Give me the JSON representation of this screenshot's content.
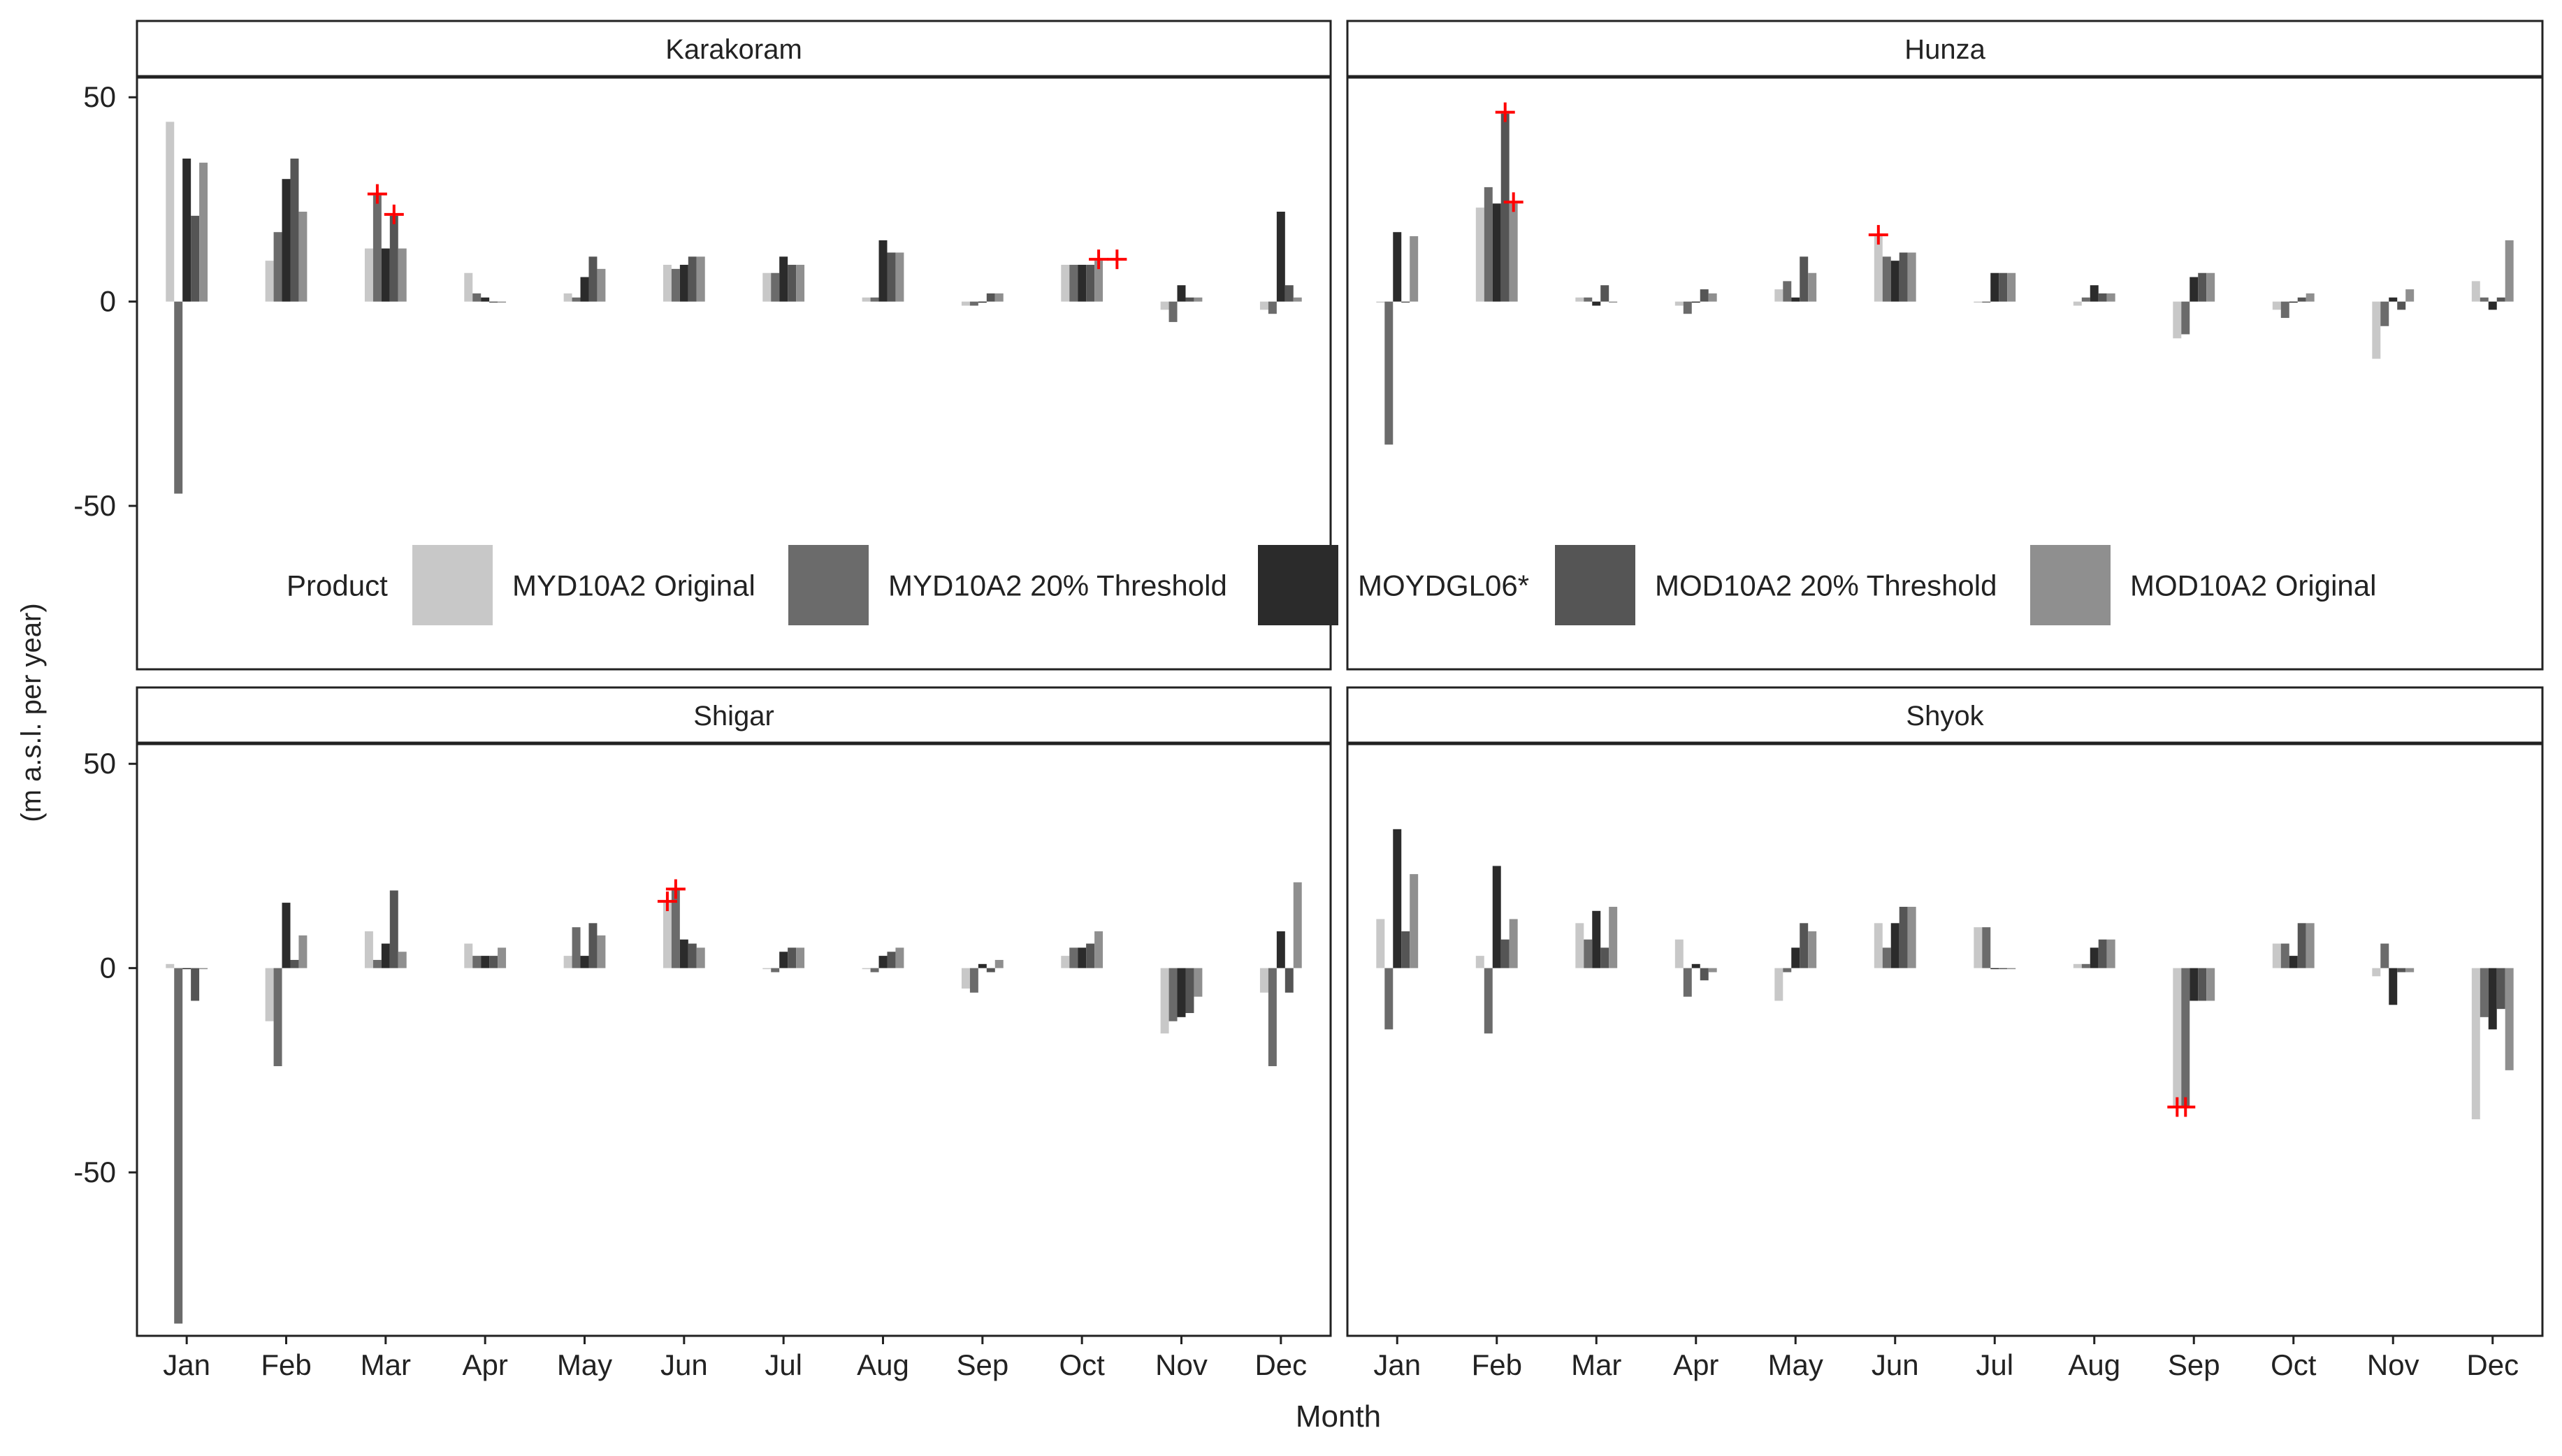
{
  "chart_data": {
    "type": "bar",
    "xlabel": "Month",
    "ylabel": "(m a.s.l. per year)",
    "ylim": [
      -90,
      55
    ],
    "yticks": [
      50,
      0,
      -50
    ],
    "categories": [
      "Jan",
      "Feb",
      "Mar",
      "Apr",
      "May",
      "Jun",
      "Jul",
      "Aug",
      "Sep",
      "Oct",
      "Nov",
      "Dec"
    ],
    "legend": {
      "title": "Product",
      "placement": "inside top-right panels, bottom",
      "entries": [
        "MYD10A2 Original",
        "MYD10A2 20% Threshold",
        "MOYDGL06*",
        "MOD10A2 20% Threshold",
        "MOD10A2 Original"
      ]
    },
    "series_colors": [
      "#c8c8c8",
      "#6b6b6b",
      "#2b2b2b",
      "#555555",
      "#8f8f8f"
    ],
    "marker_color": "#ff0000",
    "panels": [
      {
        "title": "Karakoram",
        "series": [
          {
            "name": "MYD10A2 Original",
            "values": [
              44,
              10,
              13,
              7,
              2,
              9,
              7,
              1,
              -1,
              9,
              -2,
              -2
            ]
          },
          {
            "name": "MYD10A2 20% Threshold",
            "values": [
              -47,
              17,
              26,
              2,
              1,
              8,
              7,
              1,
              -1,
              9,
              -5,
              -3
            ]
          },
          {
            "name": "MOYDGL06*",
            "values": [
              35,
              30,
              13,
              1,
              6,
              9,
              11,
              15,
              0,
              9,
              4,
              22
            ]
          },
          {
            "name": "MOD10A2 20% Threshold",
            "values": [
              21,
              35,
              21,
              0,
              11,
              11,
              9,
              12,
              2,
              9,
              1,
              4
            ]
          },
          {
            "name": "MOD10A2 Original",
            "values": [
              34,
              22,
              13,
              0,
              8,
              11,
              9,
              12,
              2,
              10,
              1,
              1
            ]
          }
        ],
        "markers": [
          {
            "category": "Mar",
            "series": "MYD10A2 20% Threshold",
            "value": 26
          },
          {
            "category": "Mar",
            "series": "MOD10A2 20% Threshold",
            "value": 21
          },
          {
            "category": "Oct",
            "series": "MOD10A2 Original",
            "value": 10
          },
          {
            "category": "Oct",
            "series": "MOD10A2 Original+",
            "value": 10
          }
        ]
      },
      {
        "title": "Hunza",
        "series": [
          {
            "name": "MYD10A2 Original",
            "values": [
              0,
              23,
              1,
              -1,
              3,
              16,
              0,
              -1,
              -9,
              -2,
              -14,
              5
            ]
          },
          {
            "name": "MYD10A2 20% Threshold",
            "values": [
              -35,
              28,
              1,
              -3,
              5,
              11,
              0,
              1,
              -8,
              -4,
              -6,
              1
            ]
          },
          {
            "name": "MOYDGL06*",
            "values": [
              17,
              24,
              -1,
              0,
              1,
              10,
              7,
              4,
              6,
              0,
              1,
              -2
            ]
          },
          {
            "name": "MOD10A2 20% Threshold",
            "values": [
              0,
              46,
              4,
              3,
              11,
              12,
              7,
              2,
              7,
              1,
              -2,
              1
            ]
          },
          {
            "name": "MOD10A2 Original",
            "values": [
              16,
              24,
              0,
              2,
              7,
              12,
              7,
              2,
              7,
              2,
              3,
              15
            ]
          }
        ],
        "markers": [
          {
            "category": "Feb",
            "series": "MOD10A2 20% Threshold",
            "value": 46
          },
          {
            "category": "Feb",
            "series": "MOD10A2 Original",
            "value": 24
          },
          {
            "category": "Jun",
            "series": "MYD10A2 Original",
            "value": 16
          }
        ]
      },
      {
        "title": "Shigar",
        "series": [
          {
            "name": "MYD10A2 Original",
            "values": [
              1,
              -13,
              9,
              6,
              3,
              16,
              0,
              0,
              -5,
              3,
              -16,
              -6
            ]
          },
          {
            "name": "MYD10A2 20% Threshold",
            "values": [
              -87,
              -24,
              2,
              3,
              10,
              19,
              -1,
              -1,
              -6,
              5,
              -13,
              -24
            ]
          },
          {
            "name": "MOYDGL06*",
            "values": [
              0,
              16,
              6,
              3,
              3,
              7,
              4,
              3,
              1,
              5,
              -12,
              9
            ]
          },
          {
            "name": "MOD10A2 20% Threshold",
            "values": [
              -8,
              2,
              19,
              3,
              11,
              6,
              5,
              4,
              -1,
              6,
              -11,
              -6
            ]
          },
          {
            "name": "MOD10A2 Original",
            "values": [
              0,
              8,
              4,
              5,
              8,
              5,
              5,
              5,
              2,
              9,
              -7,
              21
            ]
          }
        ],
        "markers": [
          {
            "category": "Jun",
            "series": "MYD10A2 Original",
            "value": 16
          },
          {
            "category": "Jun",
            "series": "MYD10A2 20% Threshold",
            "value": 19
          }
        ]
      },
      {
        "title": "Shyok",
        "series": [
          {
            "name": "MYD10A2 Original",
            "values": [
              12,
              3,
              11,
              7,
              -8,
              11,
              10,
              1,
              -34,
              6,
              -2,
              -37
            ]
          },
          {
            "name": "MYD10A2 20% Threshold",
            "values": [
              -15,
              -16,
              7,
              -7,
              -1,
              5,
              10,
              1,
              -34,
              6,
              6,
              -12
            ]
          },
          {
            "name": "MOYDGL06*",
            "values": [
              34,
              25,
              14,
              1,
              5,
              11,
              0,
              5,
              -8,
              3,
              -9,
              -15
            ]
          },
          {
            "name": "MOD10A2 20% Threshold",
            "values": [
              9,
              7,
              5,
              -3,
              11,
              15,
              0,
              7,
              -8,
              11,
              -1,
              -10
            ]
          },
          {
            "name": "MOD10A2 Original",
            "values": [
              23,
              12,
              15,
              -1,
              9,
              15,
              0,
              7,
              -8,
              11,
              -1,
              -25
            ]
          }
        ],
        "markers": [
          {
            "category": "Sep",
            "series": "MYD10A2 Original",
            "value": -34
          },
          {
            "category": "Sep",
            "series": "MYD10A2 20% Threshold",
            "value": -34
          }
        ]
      }
    ]
  }
}
